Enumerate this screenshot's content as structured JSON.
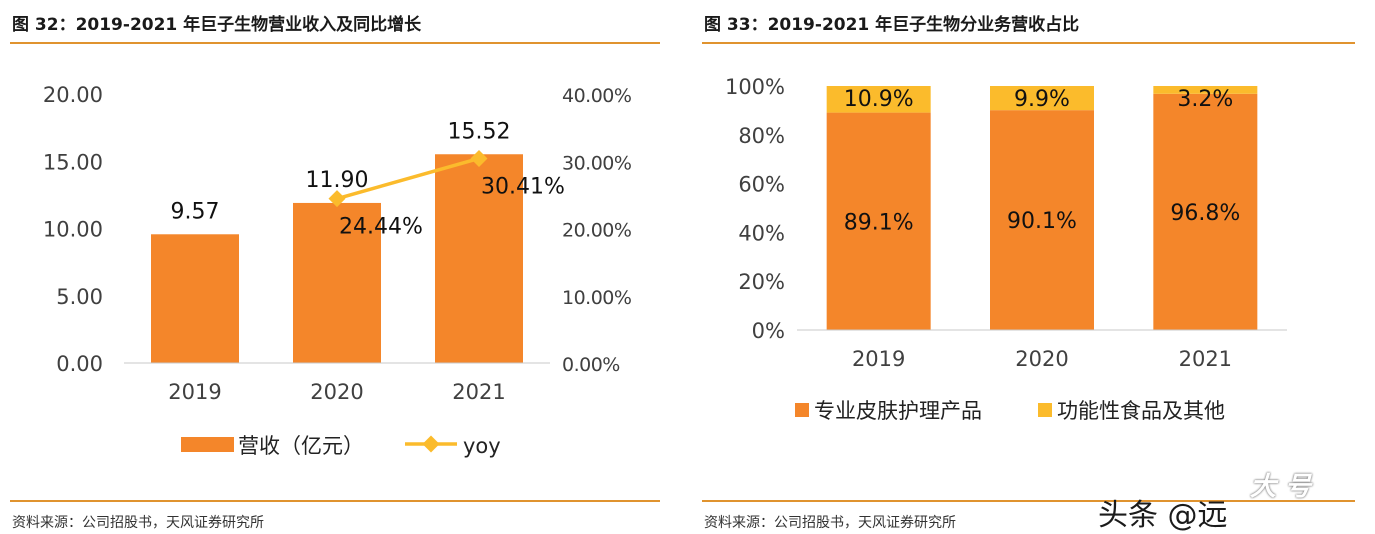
{
  "left_panel": {
    "title": "图 32：2019-2021 年巨子生物营业收入及同比增长",
    "source": "资料来源：公司招股书，天风证券研究所"
  },
  "right_panel": {
    "title": "图 33：2019-2021 年巨子生物分业务营收占比",
    "source": "资料来源：公司招股书，天风证券研究所"
  },
  "watermark": {
    "text": "头条 @远",
    "corner_text": "大 号"
  },
  "colors": {
    "orange": "#f4862a",
    "yellow": "#fbbb2c",
    "rule": "#e0932f"
  },
  "chart_data": [
    {
      "type": "bar",
      "title": "图 32：2019-2021 年巨子生物营业收入及同比增长",
      "categories": [
        "2019",
        "2020",
        "2021"
      ],
      "series": [
        {
          "name": "营收（亿元）",
          "type": "bar",
          "axis": "left",
          "values": [
            9.57,
            11.9,
            15.52
          ],
          "labels": [
            "9.57",
            "11.90",
            "15.52"
          ]
        },
        {
          "name": "yoy",
          "type": "line",
          "axis": "right",
          "x": [
            "2020",
            "2021"
          ],
          "values": [
            24.44,
            30.41
          ],
          "labels": [
            "24.44%",
            "30.41%"
          ]
        }
      ],
      "ylim": [
        0,
        20
      ],
      "yticks": [
        "0.00",
        "5.00",
        "10.00",
        "15.00",
        "20.00"
      ],
      "y2lim": [
        0,
        40
      ],
      "y2ticks": [
        "0.00%",
        "10.00%",
        "20.00%",
        "30.00%",
        "40.00%"
      ],
      "legend": [
        "营收（亿元）",
        "yoy"
      ],
      "legend_position": "bottom",
      "grid": false
    },
    {
      "type": "bar",
      "stacked": true,
      "title": "图 33：2019-2021 年巨子生物分业务营收占比",
      "categories": [
        "2019",
        "2020",
        "2021"
      ],
      "series": [
        {
          "name": "专业皮肤护理产品",
          "values": [
            89.1,
            90.1,
            96.8
          ],
          "labels": [
            "89.1%",
            "90.1%",
            "96.8%"
          ]
        },
        {
          "name": "功能性食品及其他",
          "values": [
            10.9,
            9.9,
            3.2
          ],
          "labels": [
            "10.9%",
            "9.9%",
            "3.2%"
          ]
        }
      ],
      "ylim": [
        0,
        100
      ],
      "yticks": [
        "0%",
        "20%",
        "40%",
        "60%",
        "80%",
        "100%"
      ],
      "legend": [
        "专业皮肤护理产品",
        "功能性食品及其他"
      ],
      "legend_position": "bottom",
      "grid": false
    }
  ]
}
